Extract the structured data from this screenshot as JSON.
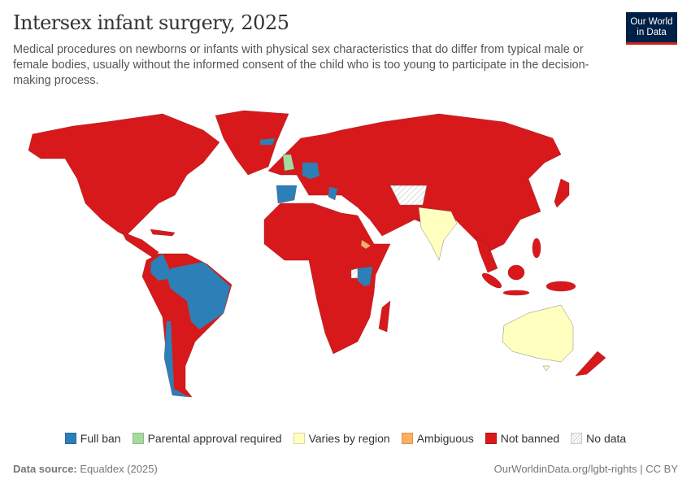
{
  "header": {
    "title": "Intersex infant surgery, 2025",
    "subtitle": "Medical procedures on newborns or infants with physical sex characteristics that do differ from typical male or female bodies, usually without the informed consent of the child who is too young to participate in the decision-making process."
  },
  "logo": {
    "line1": "Our World",
    "line2": "in Data"
  },
  "legend": [
    {
      "label": "Full ban",
      "color": "#2d7fb8"
    },
    {
      "label": "Parental approval required",
      "color": "#a6dba0"
    },
    {
      "label": "Varies by region",
      "color": "#ffffbf"
    },
    {
      "label": "Ambiguous",
      "color": "#fdae61"
    },
    {
      "label": "Not banned",
      "color": "#d7191c"
    },
    {
      "label": "No data",
      "color": "hatched"
    }
  ],
  "map": {
    "year": 2025,
    "full_ban": [
      "Iceland",
      "Germany",
      "Austria",
      "Spain",
      "Portugal",
      "Greece",
      "Malta",
      "Colombia",
      "Brazil",
      "Uruguay",
      "Chile",
      "Kenya"
    ],
    "parental_approval_required": [
      "United Kingdom"
    ],
    "varies_by_region": [
      "India",
      "Australia"
    ],
    "ambiguous": [
      "Eritrea"
    ],
    "not_banned": "Most other countries"
  },
  "footer": {
    "source_label": "Data source:",
    "source_value": "Equaldex (2025)",
    "link": "OurWorldinData.org/lgbt-rights | CC BY"
  }
}
